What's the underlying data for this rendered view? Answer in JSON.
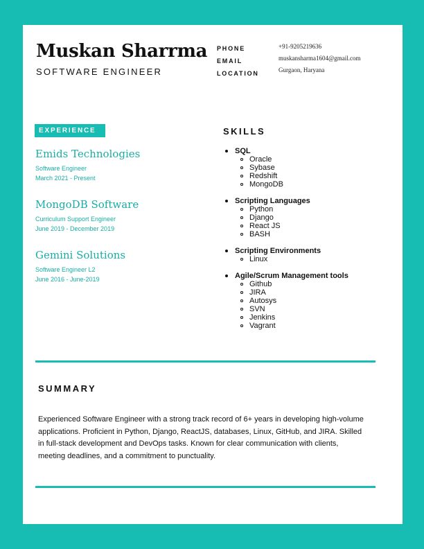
{
  "header": {
    "name": "Muskan Sharrma",
    "title": "SOFTWARE ENGINEER",
    "contact": {
      "phone_label": "PHONE",
      "email_label": "EMAIL",
      "location_label": "LOCATION",
      "phone": "+91-9205219636",
      "email": "muskansharma1604@gmail.com",
      "location": "Gurgaon, Haryana"
    }
  },
  "experience": {
    "heading": "EXPERIENCE",
    "jobs": [
      {
        "company": "Emids Technologies",
        "role": "Software Engineer",
        "dates": "March 2021 - Present"
      },
      {
        "company": "MongoDB Software",
        "role": "Curriculum Support Engineer",
        "dates": "June 2019 - December 2019"
      },
      {
        "company": "Gemini Solutions",
        "role": "Software Engineer L2",
        "dates": "June 2016 - June-2019"
      }
    ]
  },
  "skills": {
    "heading": "SKILLS",
    "groups": [
      {
        "title": "SQL",
        "items": [
          "Oracle",
          "Sybase",
          "Redshift",
          "MongoDB"
        ]
      },
      {
        "title": "Scripting Languages",
        "items": [
          "Python",
          "Django",
          "React JS",
          "BASH"
        ]
      },
      {
        "title": "Scripting Environments",
        "items": [
          "Linux"
        ]
      },
      {
        "title": "Agile/Scrum Management tools",
        "items": [
          "Github",
          "JIRA",
          "Autosys",
          "SVN",
          "Jenkins",
          "Vagrant"
        ]
      }
    ]
  },
  "summary": {
    "heading": "SUMMARY",
    "text": "Experienced Software Engineer with a strong track record of 6+ years in developing high-volume applications. Proficient in Python, Django, ReactJS, databases, Linux, GitHub, and JIRA. Skilled in full-stack development and DevOps tasks. Known for clear communication with clients, meeting deadlines, and a commitment to punctuality."
  },
  "colors": {
    "accent": "#17bcb2",
    "accent_text": "#17aea5",
    "page": "#ffffff",
    "text": "#111111"
  }
}
